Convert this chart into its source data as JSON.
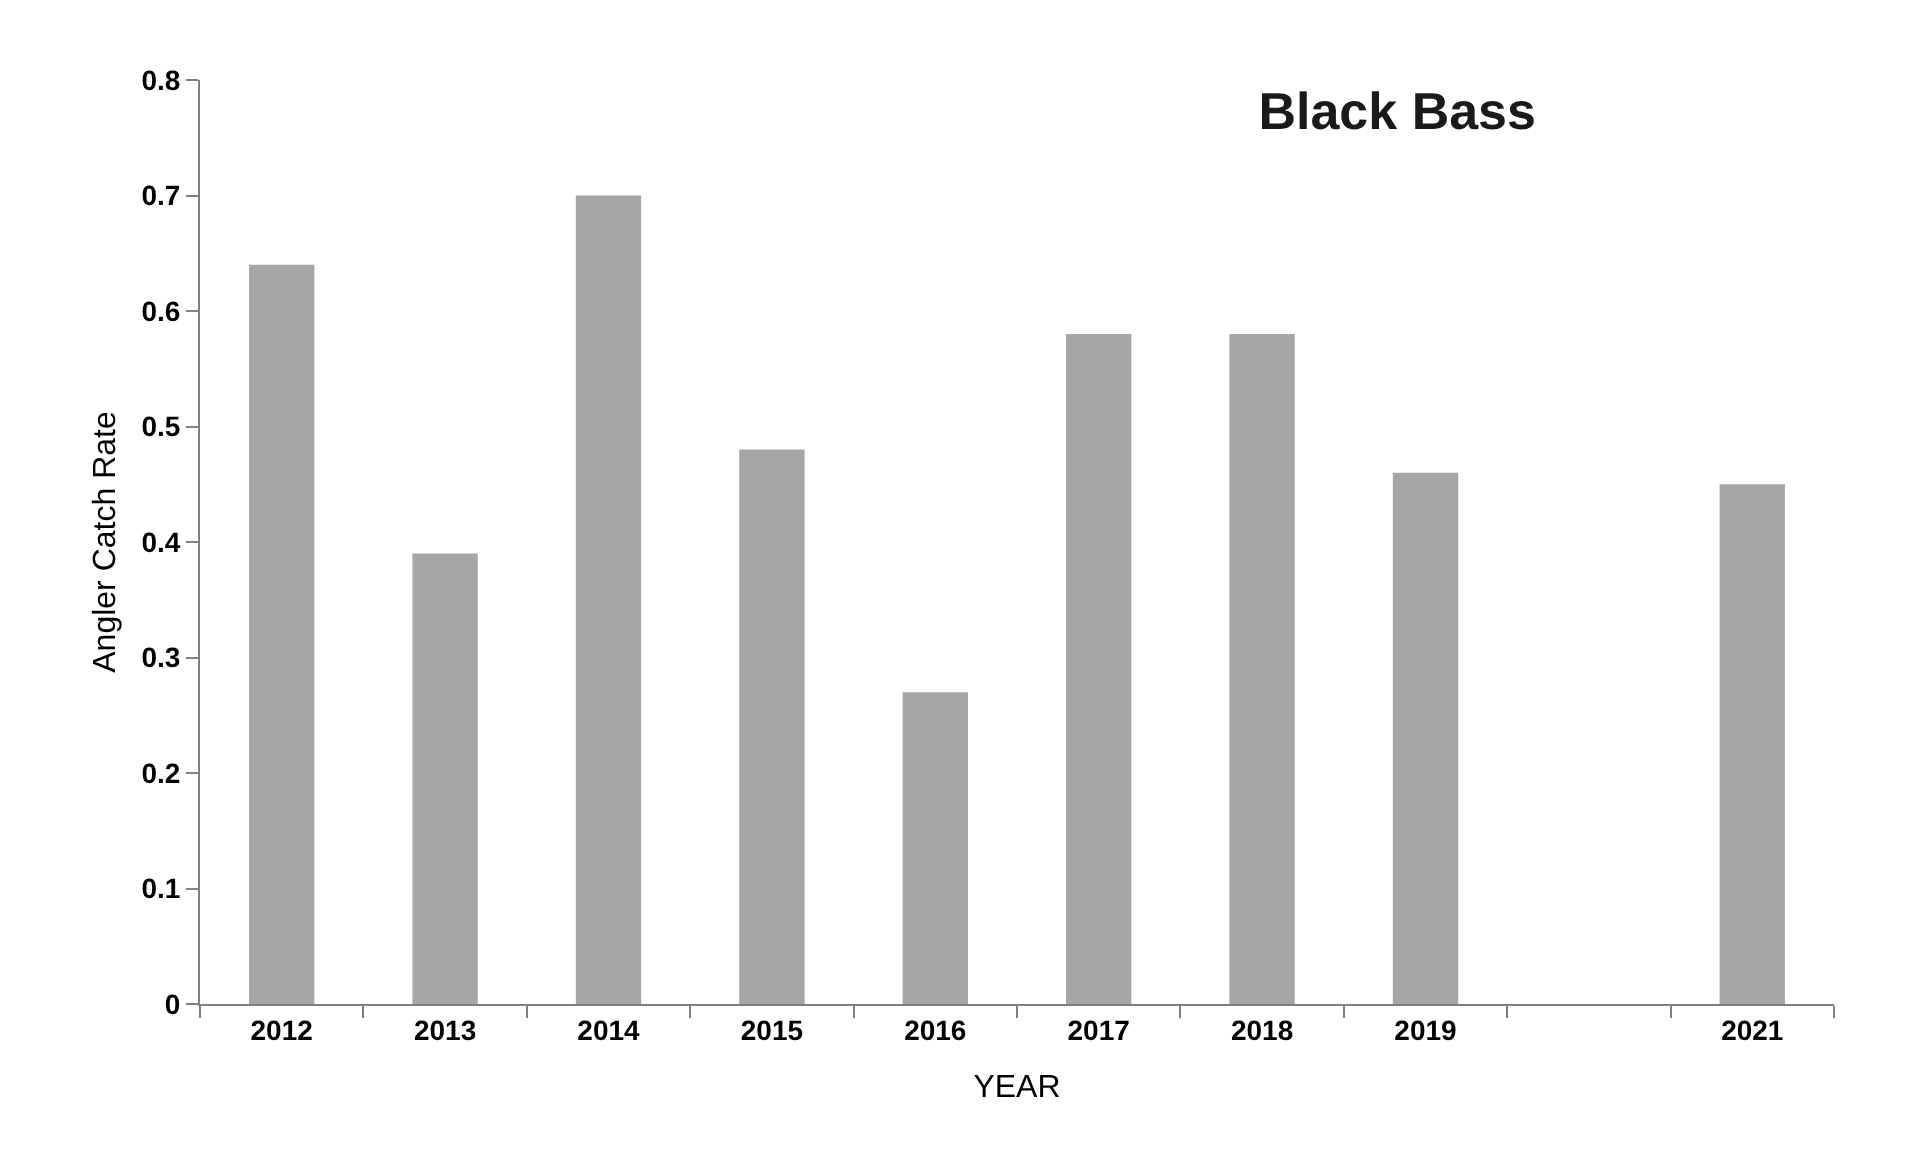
{
  "chart_data": {
    "type": "bar",
    "title": "Black Bass",
    "xlabel": "YEAR",
    "ylabel": "Angler Catch Rate",
    "categories": [
      "2012",
      "2013",
      "2014",
      "2015",
      "2016",
      "2017",
      "2018",
      "2019",
      null,
      "2021"
    ],
    "values": [
      0.64,
      0.39,
      0.7,
      0.48,
      0.27,
      0.58,
      0.58,
      0.46,
      null,
      0.45
    ],
    "color": "#a6a6a6",
    "ylim": [
      0,
      0.8
    ],
    "yticks": [
      0,
      0.1,
      0.2,
      0.3,
      0.4,
      0.5,
      0.6,
      0.7,
      0.8
    ]
  }
}
